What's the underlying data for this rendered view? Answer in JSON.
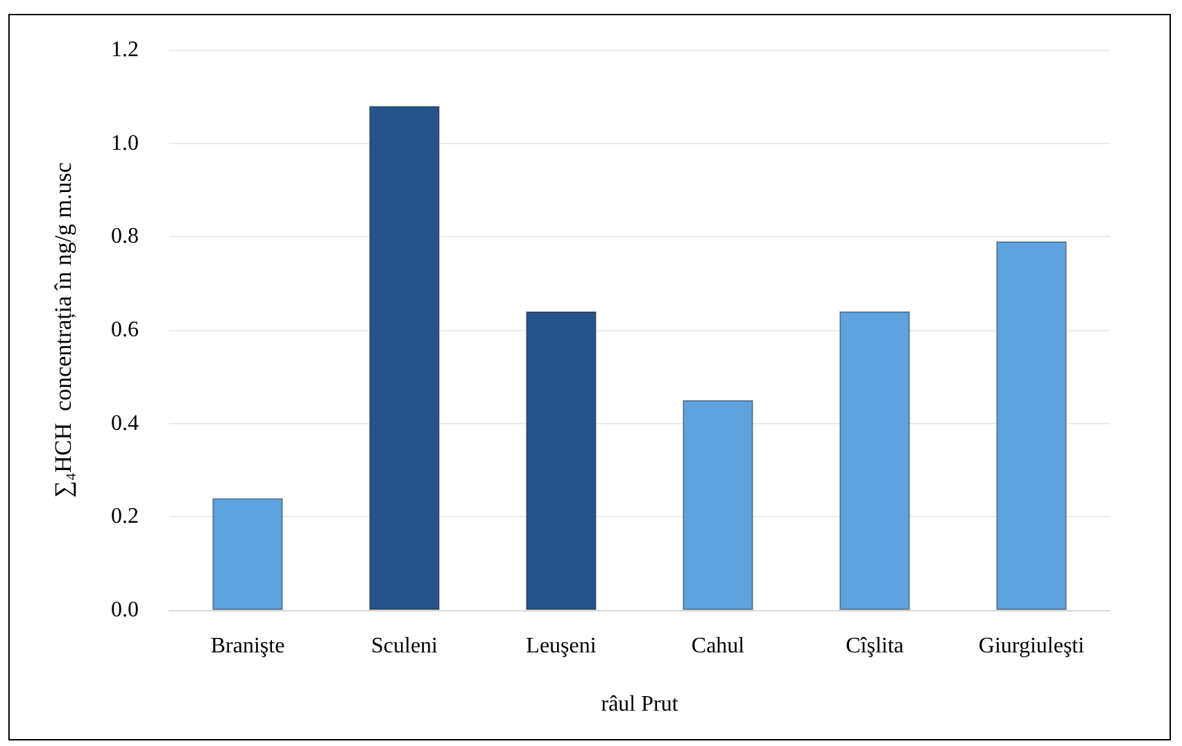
{
  "chart_data": {
    "type": "bar",
    "xlabel": "râul Prut",
    "ylabel": "∑₄HCH  concentrația în ng/g m.usc",
    "categories": [
      "Branişte",
      "Sculeni",
      "Leuşeni",
      "Cahul",
      "Cîşlita",
      "Giurgiuleşti"
    ],
    "values": [
      0.24,
      1.08,
      0.64,
      0.45,
      0.64,
      0.79
    ],
    "colors": [
      "#5fa3de",
      "#26548a",
      "#26548a",
      "#5fa3de",
      "#5fa3de",
      "#5fa3de"
    ],
    "ylim": [
      0,
      1.2
    ],
    "yticks": [
      {
        "value": 0,
        "label": "0.0"
      },
      0.2,
      0.4,
      0.6,
      0.8,
      {
        "value": 1,
        "label": "1.0"
      },
      1.2
    ],
    "grid": "y"
  }
}
